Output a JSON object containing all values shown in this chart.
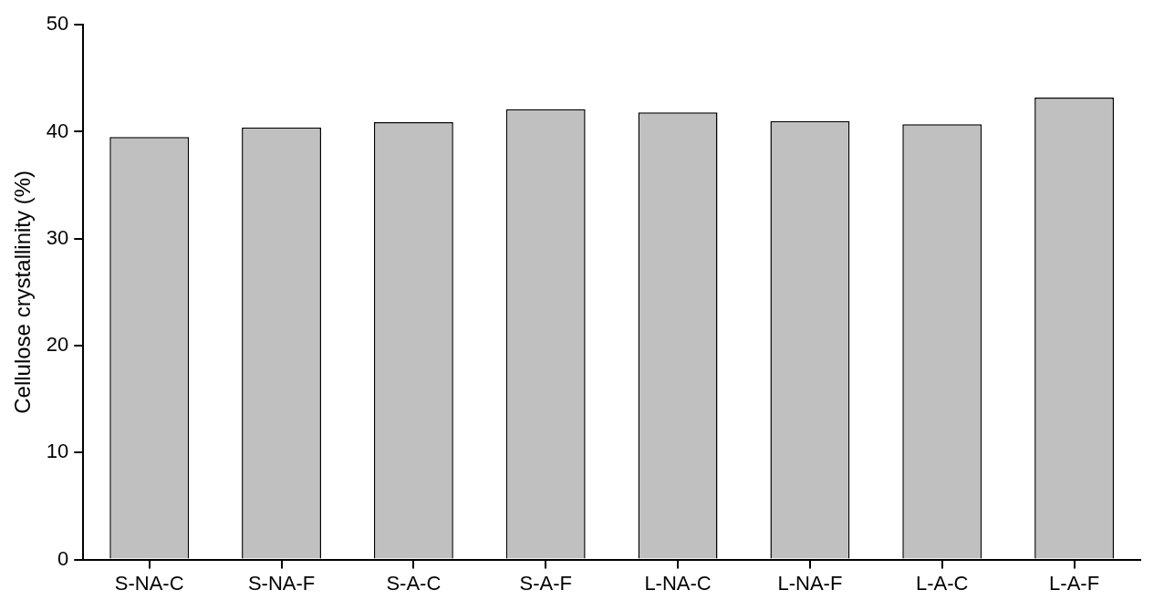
{
  "chart_data": {
    "type": "bar",
    "ylabel": "Cellulose crystallinity (%)",
    "categories": [
      "S-NA-C",
      "S-NA-F",
      "S-A-C",
      "S-A-F",
      "L-NA-C",
      "L-NA-F",
      "L-A-C",
      "L-A-F"
    ],
    "values": [
      39.5,
      40.4,
      40.9,
      42.1,
      41.8,
      41.0,
      40.7,
      43.2
    ],
    "color": "#c0c0c0",
    "ylim": [
      0,
      50
    ],
    "yticks": [
      0,
      10,
      20,
      30,
      40,
      50
    ],
    "grid": false,
    "legend": false
  }
}
